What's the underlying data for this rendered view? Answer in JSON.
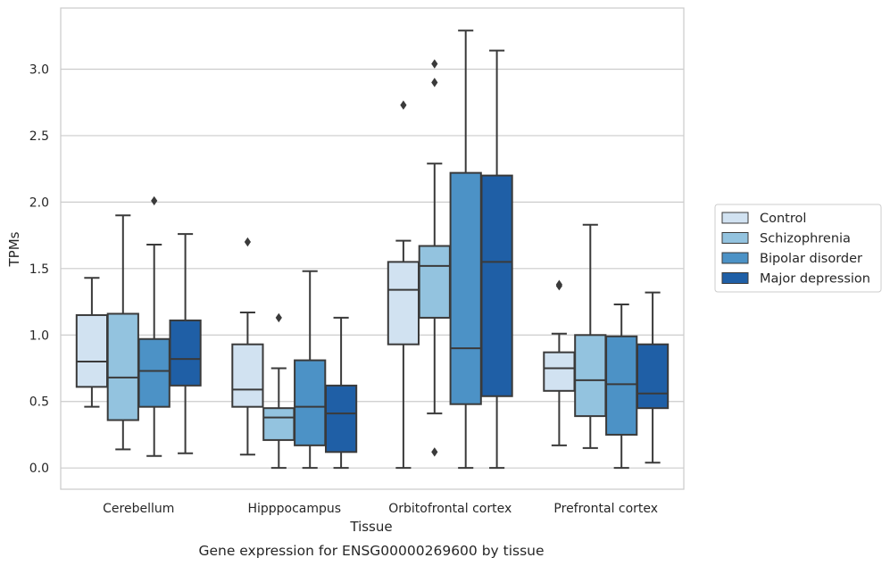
{
  "caption": "Gene expression for ENSG00000269600 by tissue",
  "colors": {
    "Control": "#d1e2f1",
    "Schizophrenia": "#93c3df",
    "Bipolar disorder": "#4c92c6",
    "Major depression": "#1f5fa6",
    "outline": "#3a3a3a",
    "grid": "#cccccc",
    "frame": "#cccccc"
  },
  "chart_data": {
    "type": "boxplot",
    "xlabel": "Tissue",
    "ylabel": "TPMs",
    "ylim": [
      -0.16,
      3.46
    ],
    "yticks": [
      0.0,
      0.5,
      1.0,
      1.5,
      2.0,
      2.5,
      3.0
    ],
    "ytick_labels": [
      "0.0",
      "0.5",
      "1.0",
      "1.5",
      "2.0",
      "2.5",
      "3.0"
    ],
    "grid": "y",
    "legend_placement": "right",
    "categories": [
      "Cerebellum",
      "Hipppocampus",
      "Orbitofrontal cortex",
      "Prefrontal cortex"
    ],
    "series": [
      {
        "name": "Control",
        "boxes": [
          {
            "whislo": 0.46,
            "q1": 0.61,
            "med": 0.8,
            "q3": 1.15,
            "whishi": 1.43,
            "fliers": []
          },
          {
            "whislo": 0.1,
            "q1": 0.46,
            "med": 0.59,
            "q3": 0.93,
            "whishi": 1.17,
            "fliers": [
              1.7
            ]
          },
          {
            "whislo": 0.0,
            "q1": 0.93,
            "med": 1.34,
            "q3": 1.55,
            "whishi": 1.71,
            "fliers": [
              2.73
            ]
          },
          {
            "whislo": 0.17,
            "q1": 0.58,
            "med": 0.75,
            "q3": 0.87,
            "whishi": 1.01,
            "fliers": [
              1.37,
              1.38
            ]
          }
        ]
      },
      {
        "name": "Schizophrenia",
        "boxes": [
          {
            "whislo": 0.14,
            "q1": 0.36,
            "med": 0.68,
            "q3": 1.16,
            "whishi": 1.9,
            "fliers": []
          },
          {
            "whislo": 0.0,
            "q1": 0.21,
            "med": 0.38,
            "q3": 0.45,
            "whishi": 0.75,
            "fliers": [
              1.13
            ]
          },
          {
            "whislo": 0.41,
            "q1": 1.13,
            "med": 1.52,
            "q3": 1.67,
            "whishi": 2.29,
            "fliers": [
              0.12,
              2.9,
              3.04
            ]
          },
          {
            "whislo": 0.15,
            "q1": 0.39,
            "med": 0.66,
            "q3": 1.0,
            "whishi": 1.83,
            "fliers": []
          }
        ]
      },
      {
        "name": "Bipolar disorder",
        "boxes": [
          {
            "whislo": 0.09,
            "q1": 0.46,
            "med": 0.73,
            "q3": 0.97,
            "whishi": 1.68,
            "fliers": [
              2.01
            ]
          },
          {
            "whislo": 0.0,
            "q1": 0.17,
            "med": 0.46,
            "q3": 0.81,
            "whishi": 1.48,
            "fliers": []
          },
          {
            "whislo": 0.0,
            "q1": 0.48,
            "med": 0.9,
            "q3": 2.22,
            "whishi": 3.29,
            "fliers": []
          },
          {
            "whislo": 0.0,
            "q1": 0.25,
            "med": 0.63,
            "q3": 0.99,
            "whishi": 1.23,
            "fliers": []
          }
        ]
      },
      {
        "name": "Major depression",
        "boxes": [
          {
            "whislo": 0.11,
            "q1": 0.62,
            "med": 0.82,
            "q3": 1.11,
            "whishi": 1.76,
            "fliers": []
          },
          {
            "whislo": 0.0,
            "q1": 0.12,
            "med": 0.41,
            "q3": 0.62,
            "whishi": 1.13,
            "fliers": []
          },
          {
            "whislo": 0.0,
            "q1": 0.54,
            "med": 1.55,
            "q3": 2.2,
            "whishi": 3.14,
            "fliers": []
          },
          {
            "whislo": 0.04,
            "q1": 0.45,
            "med": 0.56,
            "q3": 0.93,
            "whishi": 1.32,
            "fliers": []
          }
        ]
      }
    ]
  }
}
